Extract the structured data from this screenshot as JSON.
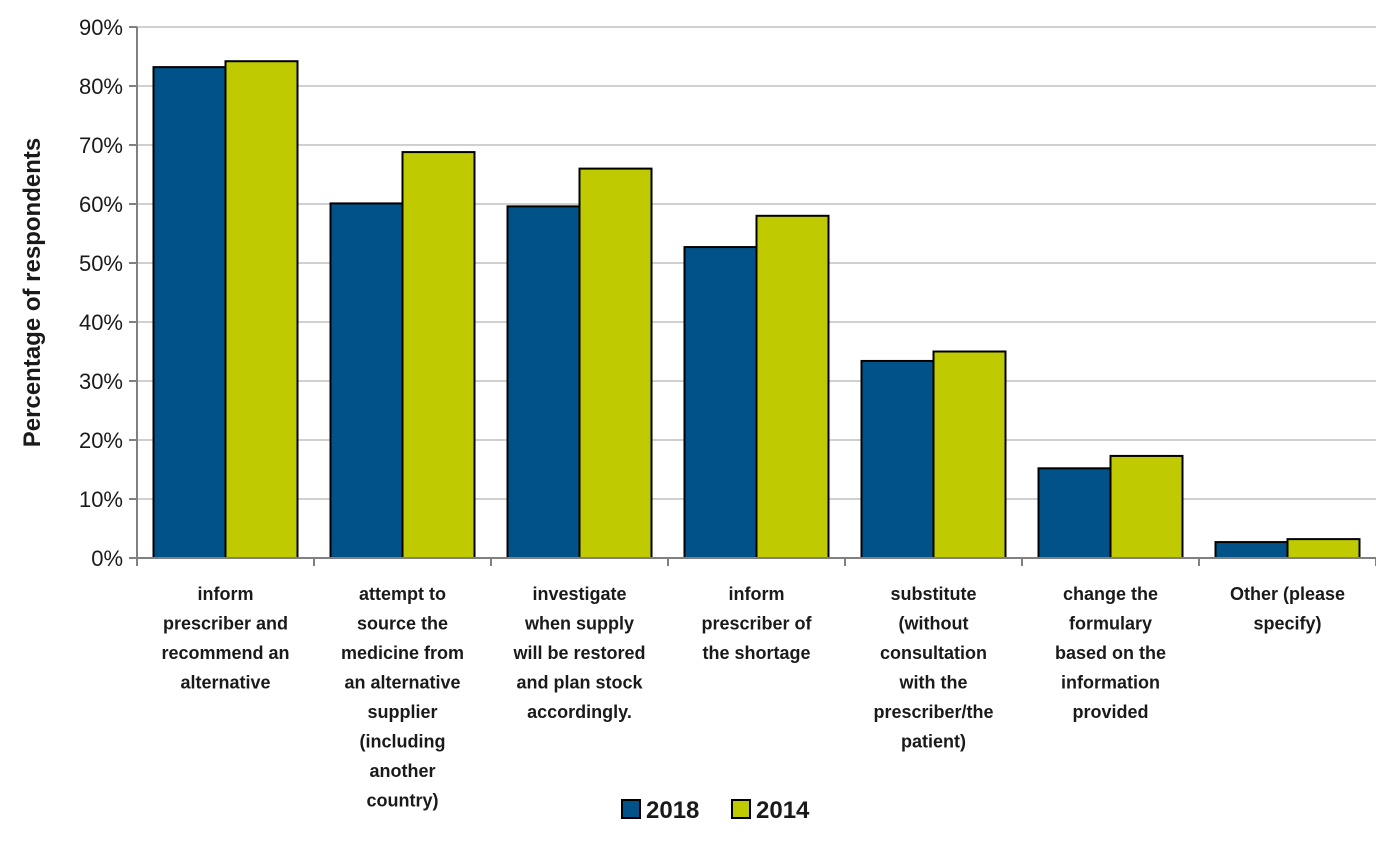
{
  "chart_data": {
    "type": "bar",
    "title": "",
    "xlabel": "",
    "ylabel": "Percentage of respondents",
    "ylim": [
      0,
      90
    ],
    "yticks": [
      "0%",
      "10%",
      "20%",
      "30%",
      "40%",
      "50%",
      "60%",
      "70%",
      "80%",
      "90%"
    ],
    "grid": "horizontal",
    "legend_position": "bottom",
    "categories": [
      [
        "inform",
        "prescriber and",
        "recommend an",
        "alternative"
      ],
      [
        "attempt to",
        "source the",
        "medicine from",
        "an alternative",
        "supplier",
        "(including",
        "another",
        "country)"
      ],
      [
        "investigate",
        "when supply",
        "will be restored",
        "and plan stock",
        "accordingly."
      ],
      [
        "inform",
        "prescriber of",
        "the shortage"
      ],
      [
        "substitute",
        "(without",
        "consultation",
        "with the",
        "prescriber/the",
        "patient)"
      ],
      [
        "change the",
        "formulary",
        "based on the",
        "information",
        "provided"
      ],
      [
        "Other (please",
        "specify)"
      ]
    ],
    "series": [
      {
        "name": "2018",
        "color": "#005288",
        "values": [
          83.2,
          60.1,
          59.6,
          52.7,
          33.4,
          15.2,
          2.7
        ]
      },
      {
        "name": "2014",
        "color": "#BFCB00",
        "values": [
          84.2,
          68.8,
          66.0,
          58.0,
          35.0,
          17.3,
          3.2
        ]
      }
    ]
  }
}
